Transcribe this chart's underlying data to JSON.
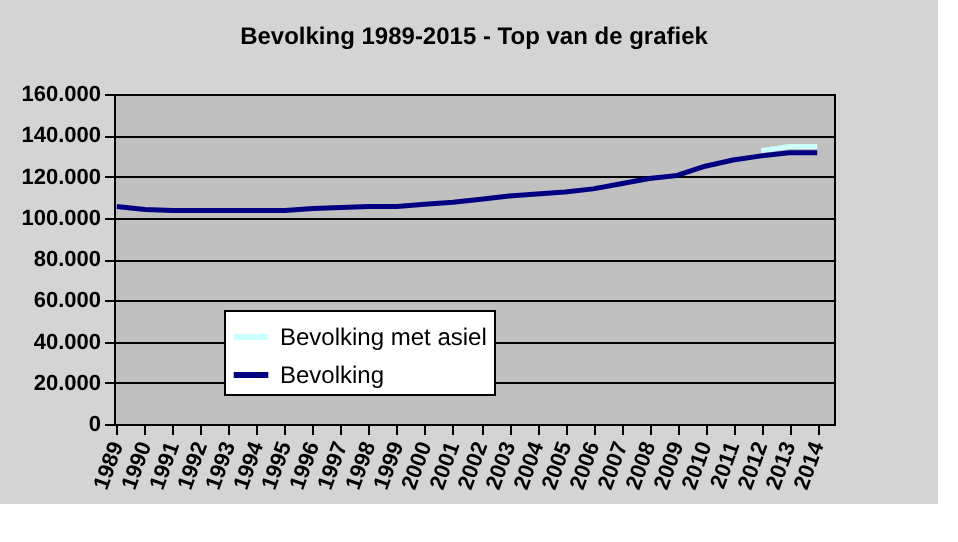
{
  "chart_data": {
    "type": "line",
    "title": "Bevolking 1989-2015 - Top van de grafiek",
    "categories": [
      "1989",
      "1990",
      "1991",
      "1992",
      "1993",
      "1994",
      "1995",
      "1996",
      "1997",
      "1998",
      "1999",
      "2000",
      "2001",
      "2002",
      "2003",
      "2004",
      "2005",
      "2006",
      "2007",
      "2008",
      "2009",
      "2010",
      "2011",
      "2012",
      "2013",
      "2014"
    ],
    "series": [
      {
        "name": "Bevolking met asiel",
        "color": "#ccffff",
        "values": [
          null,
          null,
          null,
          null,
          null,
          null,
          null,
          null,
          null,
          null,
          null,
          null,
          null,
          null,
          null,
          null,
          null,
          null,
          null,
          null,
          null,
          null,
          null,
          132500,
          134500,
          134500
        ]
      },
      {
        "name": "Bevolking",
        "color": "#000080",
        "values": [
          105500,
          104000,
          103500,
          103500,
          103500,
          103500,
          103500,
          104500,
          105000,
          105500,
          105500,
          106500,
          107500,
          109000,
          110500,
          111500,
          112500,
          114000,
          116500,
          119000,
          120500,
          125000,
          128000,
          130000,
          131500,
          131500
        ]
      }
    ],
    "ylim": [
      0,
      160000
    ],
    "yticks": [
      {
        "value": 0,
        "label": "0"
      },
      {
        "value": 20000,
        "label": "20.000"
      },
      {
        "value": 40000,
        "label": "40.000"
      },
      {
        "value": 60000,
        "label": "60.000"
      },
      {
        "value": 80000,
        "label": "80.000"
      },
      {
        "value": 100000,
        "label": "100.000"
      },
      {
        "value": 120000,
        "label": "120.000"
      },
      {
        "value": 140000,
        "label": "140.000"
      },
      {
        "value": 160000,
        "label": "160.000"
      }
    ],
    "grid": "y",
    "legend": "bottom left",
    "line_style": "solid",
    "marker": "none"
  }
}
